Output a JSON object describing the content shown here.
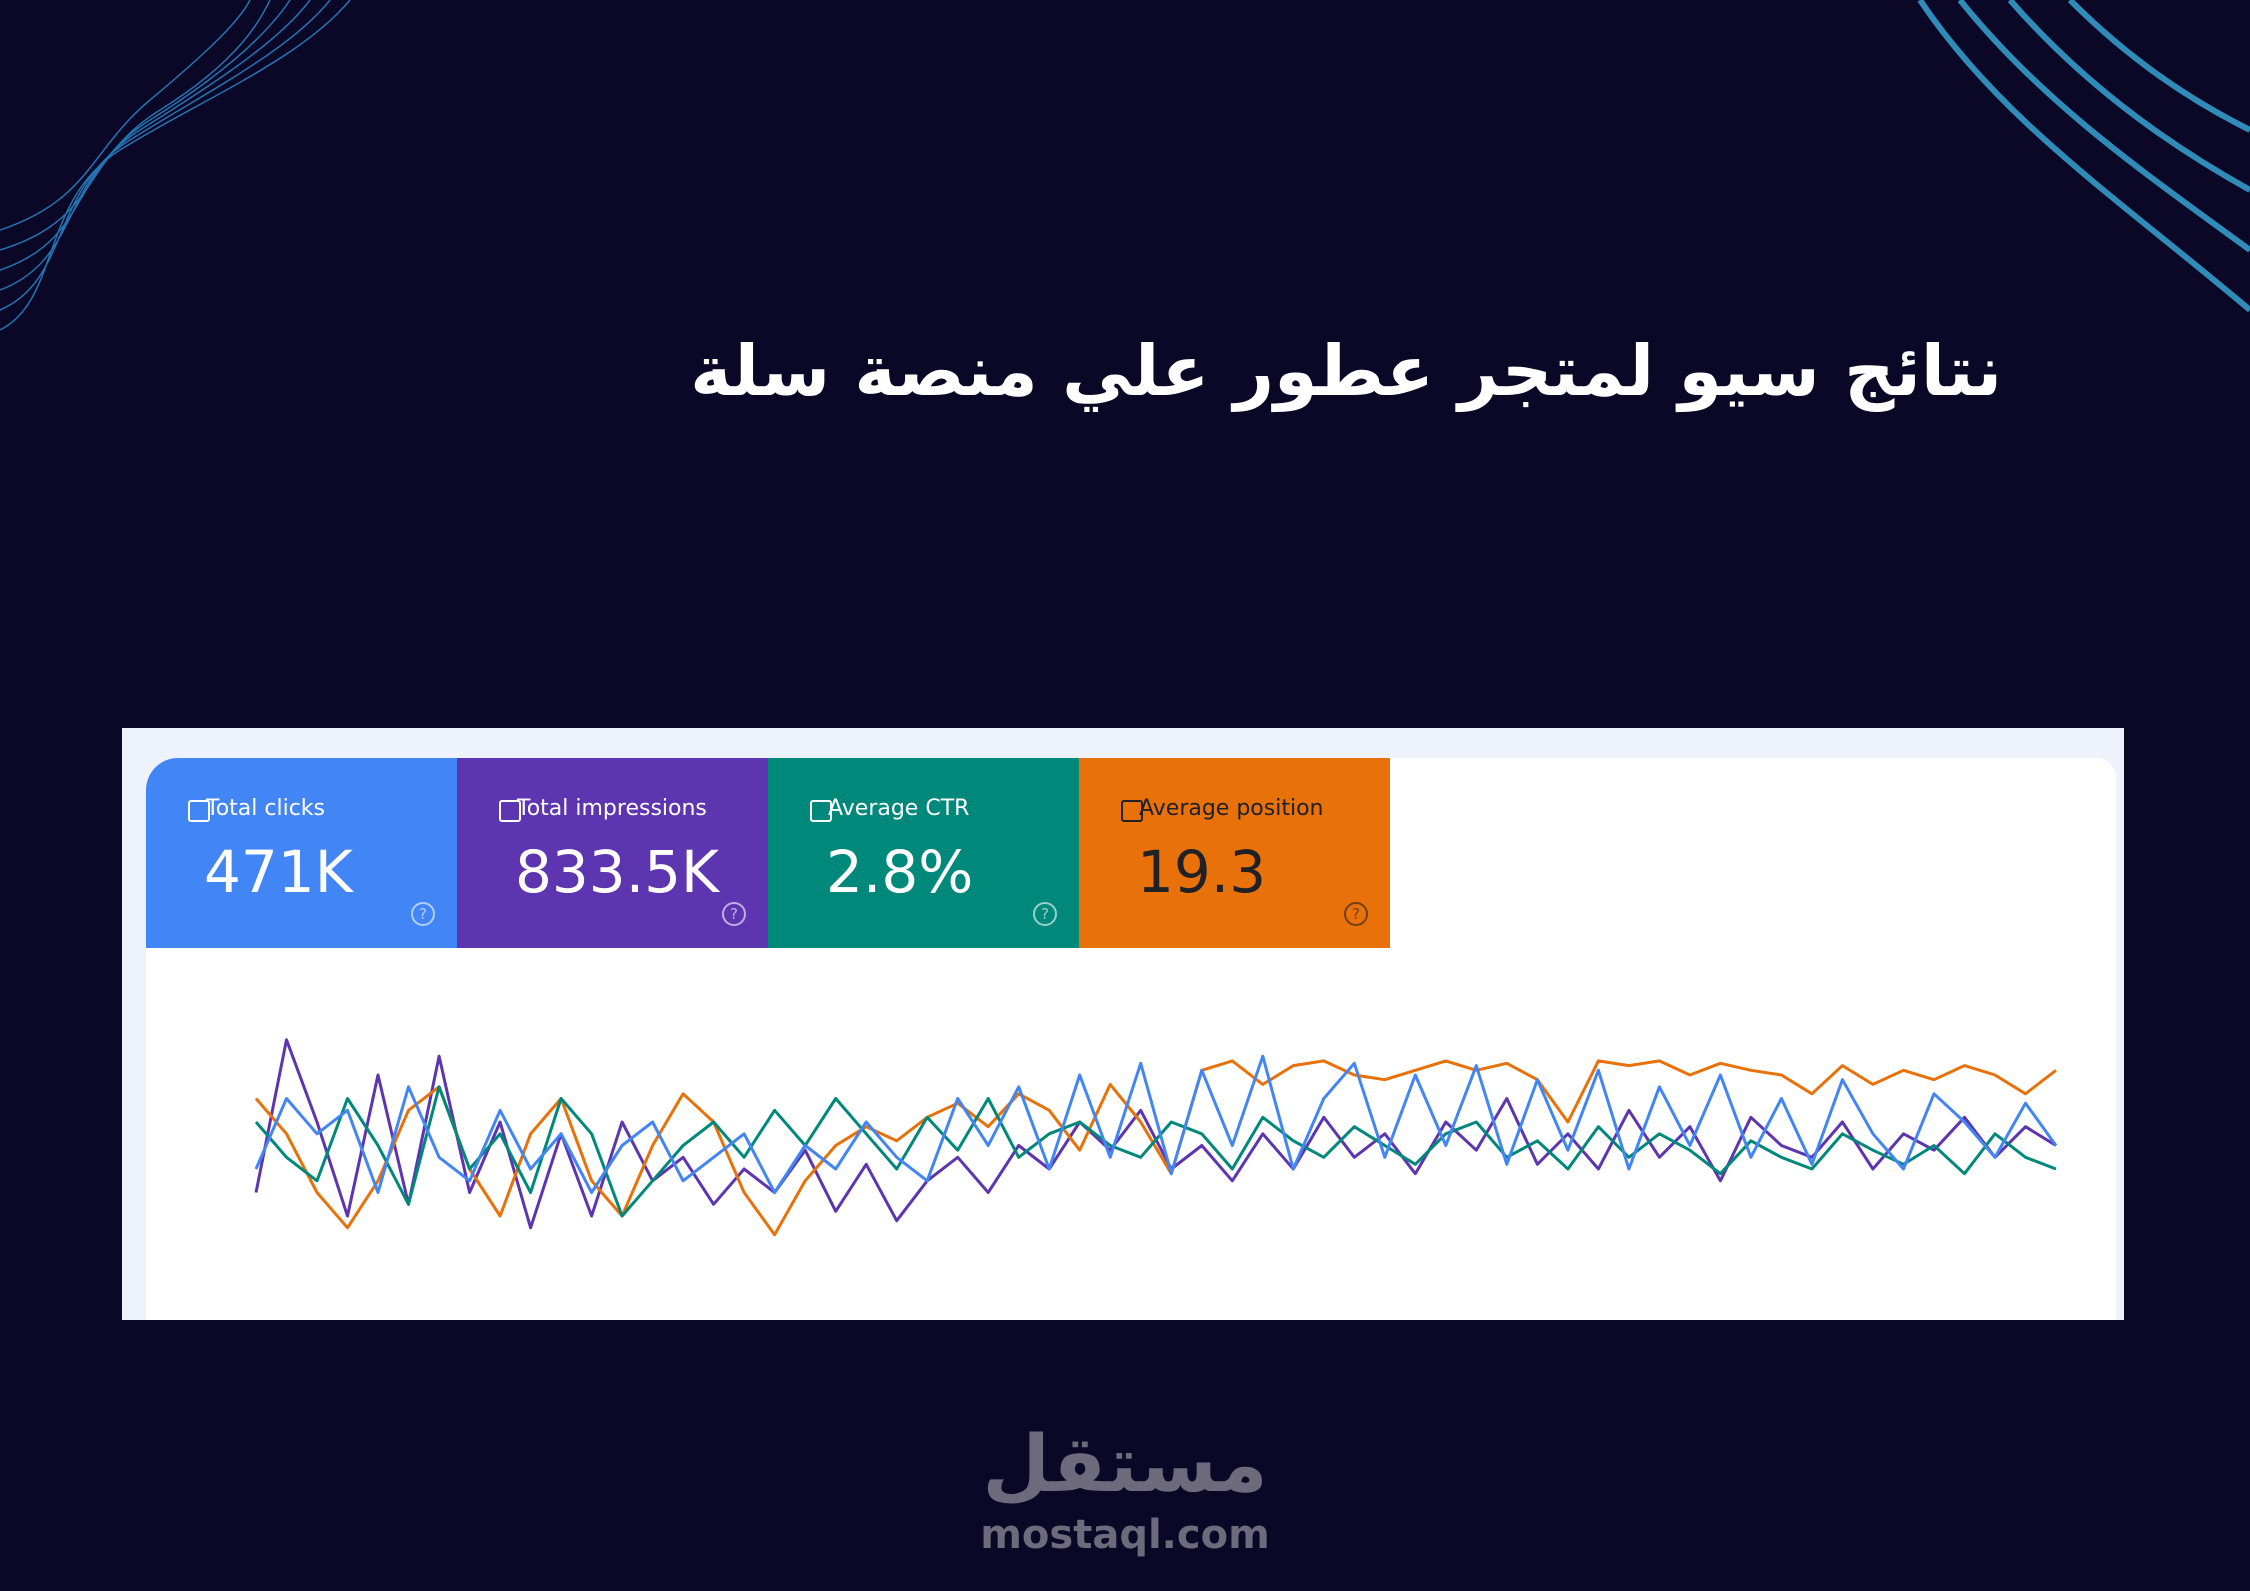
{
  "title": "نتائج سيو لمتجر عطور علي منصة سلة",
  "chart_data": {
    "type": "line",
    "ylim": [
      0,
      100
    ],
    "series": [
      {
        "name": "Total impressions",
        "total": "833.5K",
        "color": "#5e35b1",
        "values": [
          30,
          95,
          60,
          20,
          80,
          25,
          88,
          30,
          60,
          15,
          55,
          20,
          60,
          35,
          45,
          25,
          40,
          30,
          48,
          22,
          42,
          18,
          35,
          45,
          30,
          50,
          40,
          60,
          48,
          65,
          40,
          50,
          35,
          55,
          40,
          62,
          45,
          55,
          38,
          60,
          48,
          70,
          42,
          55,
          40,
          65,
          45,
          58,
          35,
          62,
          50,
          45,
          60,
          40,
          55,
          48,
          62,
          45,
          58,
          50
        ]
      },
      {
        "name": "Average position",
        "total": "19.3",
        "color": "#e8710a",
        "values": [
          70,
          55,
          30,
          15,
          35,
          65,
          75,
          40,
          20,
          55,
          70,
          35,
          20,
          50,
          72,
          60,
          30,
          12,
          35,
          50,
          58,
          52,
          62,
          68,
          58,
          72,
          65,
          48,
          76,
          60,
          38,
          82,
          86,
          76,
          84,
          86,
          80,
          78,
          82,
          86,
          82,
          85,
          78,
          60,
          86,
          84,
          86,
          80,
          85,
          82,
          80,
          72,
          84,
          76,
          82,
          78,
          84,
          80,
          72,
          82
        ]
      },
      {
        "name": "Average CTR",
        "total": "2.8%",
        "color": "#00897b",
        "values": [
          60,
          45,
          35,
          70,
          50,
          25,
          75,
          40,
          55,
          30,
          70,
          55,
          20,
          35,
          50,
          60,
          45,
          65,
          50,
          70,
          55,
          40,
          62,
          48,
          70,
          45,
          55,
          60,
          50,
          45,
          60,
          55,
          40,
          62,
          52,
          45,
          58,
          50,
          42,
          55,
          60,
          45,
          52,
          40,
          58,
          45,
          55,
          48,
          38,
          52,
          45,
          40,
          55,
          48,
          42,
          50,
          38,
          55,
          45,
          40
        ]
      },
      {
        "name": "Total clicks",
        "total": "471K",
        "color": "#4285f4",
        "values": [
          40,
          70,
          55,
          65,
          30,
          75,
          45,
          35,
          65,
          40,
          55,
          30,
          50,
          60,
          35,
          45,
          55,
          30,
          50,
          40,
          60,
          45,
          35,
          70,
          50,
          75,
          40,
          80,
          45,
          85,
          38,
          82,
          50,
          88,
          40,
          70,
          85,
          45,
          80,
          50,
          84,
          42,
          78,
          48,
          82,
          40,
          75,
          50,
          80,
          45,
          70,
          42,
          78,
          55,
          40,
          72,
          60,
          45,
          68,
          50
        ]
      }
    ],
    "cards": [
      3,
      0,
      2,
      1
    ]
  },
  "logo": {
    "arabic": "مستقل",
    "latin": "mostaql.com"
  }
}
